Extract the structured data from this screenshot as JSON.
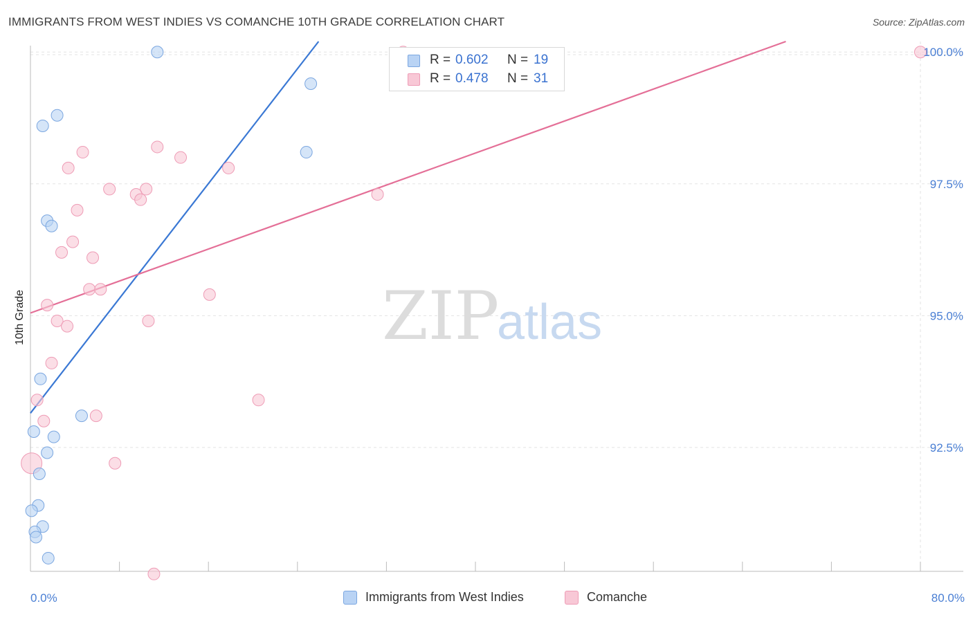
{
  "title": "IMMIGRANTS FROM WEST INDIES VS COMANCHE 10TH GRADE CORRELATION CHART",
  "source": "Source: ZipAtlas.com",
  "watermark": {
    "zip": "ZIP",
    "atlas": "atlas"
  },
  "stats": [
    {
      "r_label": "R = ",
      "r_value": "0.602",
      "n_label": "N = ",
      "n_value": "19",
      "fill": "#b9d3f4",
      "stroke": "#7aa6e0"
    },
    {
      "r_label": "R = ",
      "r_value": "0.478",
      "n_label": "N = ",
      "n_value": "31",
      "fill": "#f8c8d6",
      "stroke": "#ee9bb5"
    }
  ],
  "legend": [
    {
      "label": "Immigrants from West Indies",
      "fill": "#b9d3f4",
      "stroke": "#7aa6e0"
    },
    {
      "label": "Comanche",
      "fill": "#f8c8d6",
      "stroke": "#ee9bb5"
    }
  ],
  "chart_data": {
    "type": "scatter",
    "title": "IMMIGRANTS FROM WEST INDIES VS COMANCHE 10TH GRADE CORRELATION CHART",
    "xlabel": "",
    "ylabel": "10th Grade",
    "xlim": [
      0,
      80
    ],
    "ylim": [
      90.15,
      100.2
    ],
    "x_tick_labels": [
      "0.0%",
      "80.0%"
    ],
    "y_ticks": [
      {
        "value": 100.0,
        "label": "100.0%"
      },
      {
        "value": 97.5,
        "label": "97.5%"
      },
      {
        "value": 95.0,
        "label": "95.0%"
      },
      {
        "value": 92.5,
        "label": "92.5%"
      }
    ],
    "grid": true,
    "series": [
      {
        "name": "Immigrants from West Indies",
        "color": "#3a78d4",
        "fill": "#b9d3f4",
        "stroke": "#7aa6e0",
        "trend": {
          "x": [
            0.0,
            25.9
          ],
          "y": [
            93.15,
            100.2
          ]
        },
        "points": [
          {
            "x": 11.4,
            "y": 100.0
          },
          {
            "x": 25.2,
            "y": 99.4
          },
          {
            "x": 2.4,
            "y": 98.8
          },
          {
            "x": 1.1,
            "y": 98.6
          },
          {
            "x": 24.8,
            "y": 98.1
          },
          {
            "x": 1.5,
            "y": 96.8
          },
          {
            "x": 1.9,
            "y": 96.7
          },
          {
            "x": 0.9,
            "y": 93.8
          },
          {
            "x": 4.6,
            "y": 93.1
          },
          {
            "x": 0.3,
            "y": 92.8
          },
          {
            "x": 2.1,
            "y": 92.7
          },
          {
            "x": 1.5,
            "y": 92.4
          },
          {
            "x": 0.8,
            "y": 92.0
          },
          {
            "x": 0.7,
            "y": 91.4
          },
          {
            "x": 0.1,
            "y": 91.3
          },
          {
            "x": 1.1,
            "y": 91.0
          },
          {
            "x": 0.4,
            "y": 90.9
          },
          {
            "x": 0.5,
            "y": 90.8
          },
          {
            "x": 1.6,
            "y": 90.4
          }
        ]
      },
      {
        "name": "Comanche",
        "color": "#e46f97",
        "fill": "#f8c8d6",
        "stroke": "#ee9bb5",
        "trend": {
          "x": [
            0.0,
            67.9
          ],
          "y": [
            95.05,
            100.2
          ]
        },
        "points": [
          {
            "x": 33.5,
            "y": 100.0
          },
          {
            "x": 80.0,
            "y": 100.0
          },
          {
            "x": 11.4,
            "y": 98.2
          },
          {
            "x": 4.7,
            "y": 98.1
          },
          {
            "x": 13.5,
            "y": 98.0
          },
          {
            "x": 3.4,
            "y": 97.8
          },
          {
            "x": 17.8,
            "y": 97.8
          },
          {
            "x": 7.1,
            "y": 97.4
          },
          {
            "x": 10.4,
            "y": 97.4
          },
          {
            "x": 9.5,
            "y": 97.3
          },
          {
            "x": 9.9,
            "y": 97.2
          },
          {
            "x": 31.2,
            "y": 97.3
          },
          {
            "x": 4.2,
            "y": 97.0
          },
          {
            "x": 3.8,
            "y": 96.4
          },
          {
            "x": 2.8,
            "y": 96.2
          },
          {
            "x": 5.6,
            "y": 96.1
          },
          {
            "x": 5.3,
            "y": 95.5
          },
          {
            "x": 6.3,
            "y": 95.5
          },
          {
            "x": 16.1,
            "y": 95.4
          },
          {
            "x": 1.5,
            "y": 95.2
          },
          {
            "x": 10.6,
            "y": 94.9
          },
          {
            "x": 2.4,
            "y": 94.9
          },
          {
            "x": 3.3,
            "y": 94.8
          },
          {
            "x": 1.9,
            "y": 94.1
          },
          {
            "x": 0.6,
            "y": 93.4
          },
          {
            "x": 20.5,
            "y": 93.4
          },
          {
            "x": 5.9,
            "y": 93.1
          },
          {
            "x": 1.2,
            "y": 93.0
          },
          {
            "x": 7.6,
            "y": 92.2
          },
          {
            "x": 0.1,
            "y": 92.2
          },
          {
            "x": 11.1,
            "y": 90.1
          }
        ]
      }
    ]
  }
}
